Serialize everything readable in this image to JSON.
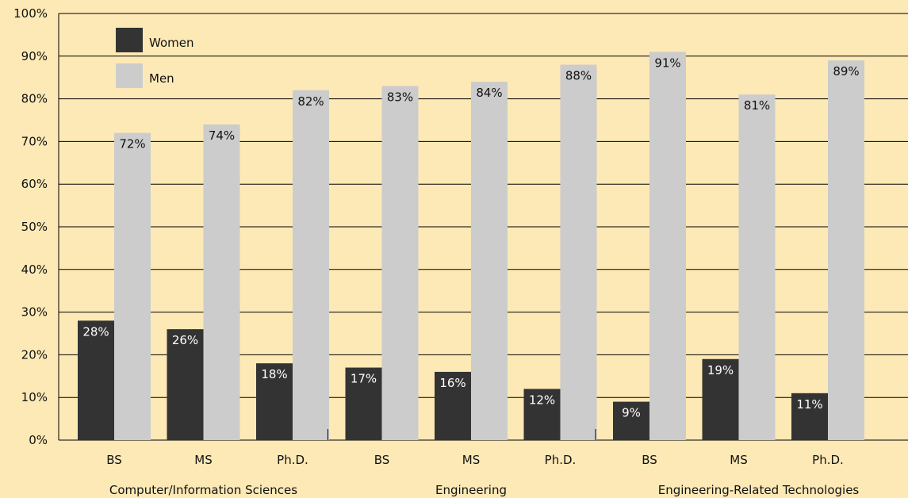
{
  "chart_data": {
    "type": "bar",
    "title": "",
    "xlabel": "",
    "ylabel": "",
    "ylim": [
      0,
      100
    ],
    "y_ticks": [
      "0%",
      "10%",
      "20%",
      "30%",
      "40%",
      "50%",
      "60%",
      "70%",
      "80%",
      "90%",
      "100%"
    ],
    "groups": [
      "Computer/Information Sciences",
      "Engineering",
      "Engineering-Related Technologies"
    ],
    "categories": [
      "BS",
      "MS",
      "Ph.D.",
      "BS",
      "MS",
      "Ph.D.",
      "BS",
      "MS",
      "Ph.D."
    ],
    "series": [
      {
        "name": "Women",
        "color": "#333333",
        "values": [
          28,
          26,
          18,
          17,
          16,
          12,
          9,
          19,
          11
        ],
        "labels": [
          "28%",
          "26%",
          "18%",
          "17%",
          "16%",
          "12%",
          "9%",
          "19%",
          "11%"
        ]
      },
      {
        "name": "Men",
        "color": "#cccccc",
        "values": [
          72,
          74,
          82,
          83,
          84,
          88,
          91,
          81,
          89
        ],
        "labels": [
          "72%",
          "74%",
          "82%",
          "83%",
          "84%",
          "88%",
          "91%",
          "81%",
          "89%"
        ]
      }
    ],
    "grid": true,
    "legend": "top-left",
    "background": "#fde9b6"
  }
}
